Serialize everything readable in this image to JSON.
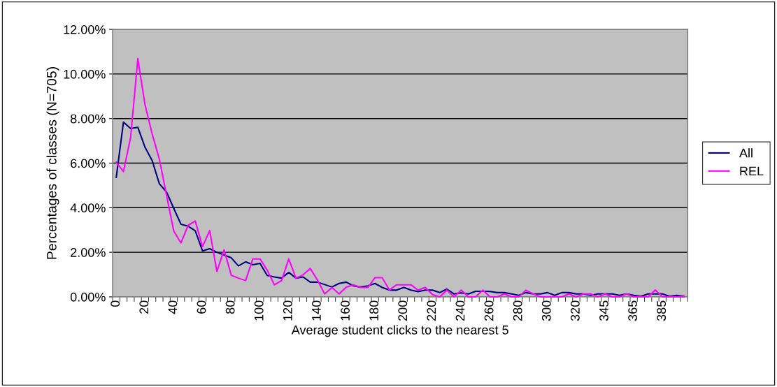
{
  "chart_data": {
    "type": "line",
    "xlabel": "Average student clicks to the nearest 5",
    "ylabel": "Percentages of classes (N=705)",
    "categories": [
      "0",
      null,
      null,
      null,
      "20",
      null,
      null,
      null,
      "40",
      null,
      null,
      null,
      "60",
      null,
      null,
      null,
      "80",
      null,
      null,
      null,
      "100",
      null,
      null,
      null,
      "120",
      null,
      null,
      null,
      "140",
      null,
      null,
      null,
      "160",
      null,
      null,
      null,
      "180",
      null,
      null,
      null,
      "200",
      null,
      null,
      null,
      "220",
      null,
      null,
      null,
      "240",
      null,
      null,
      null,
      "260",
      null,
      null,
      null,
      "280",
      null,
      null,
      null,
      "300",
      null,
      null,
      null,
      "320",
      null,
      null,
      null,
      "345",
      null,
      null,
      null,
      "365",
      null,
      null,
      null,
      "385",
      null,
      null,
      null
    ],
    "series": [
      {
        "name": "All",
        "color": "#000080",
        "values": [
          5.36,
          7.84,
          7.55,
          7.61,
          6.71,
          6.11,
          5.07,
          4.7,
          3.97,
          3.26,
          3.17,
          2.96,
          2.06,
          2.16,
          2.0,
          1.88,
          1.75,
          1.39,
          1.57,
          1.44,
          1.5,
          0.96,
          0.89,
          0.84,
          1.1,
          0.84,
          0.89,
          0.66,
          0.66,
          0.55,
          0.44,
          0.6,
          0.66,
          0.49,
          0.44,
          0.49,
          0.6,
          0.42,
          0.3,
          0.3,
          0.42,
          0.3,
          0.23,
          0.3,
          0.3,
          0.19,
          0.35,
          0.13,
          0.18,
          0.13,
          0.25,
          0.25,
          0.24,
          0.19,
          0.19,
          0.13,
          0.07,
          0.19,
          0.13,
          0.13,
          0.19,
          0.07,
          0.19,
          0.19,
          0.13,
          0.13,
          0.07,
          0.13,
          0.13,
          0.13,
          0.07,
          0.13,
          0.07,
          0.02,
          0.13,
          0.13,
          0.13,
          0.02,
          0.07,
          0.02
        ]
      },
      {
        "name": "REL",
        "color": "#ff00ff",
        "values": [
          6.04,
          5.62,
          7.16,
          10.69,
          8.62,
          7.3,
          6.17,
          4.55,
          2.95,
          2.42,
          3.21,
          3.4,
          2.25,
          2.97,
          1.14,
          2.11,
          0.97,
          0.84,
          0.73,
          1.7,
          1.7,
          1.2,
          0.54,
          0.73,
          1.7,
          0.84,
          0.99,
          1.27,
          0.75,
          0.13,
          0.42,
          0.13,
          0.44,
          0.54,
          0.42,
          0.42,
          0.86,
          0.86,
          0.31,
          0.54,
          0.54,
          0.54,
          0.3,
          0.42,
          0.1,
          0,
          0.3,
          0,
          0.3,
          0,
          0,
          0.3,
          0,
          0,
          0.13,
          0,
          0,
          0.3,
          0.13,
          0,
          0,
          0,
          0,
          0.13,
          0,
          0.13,
          0.13,
          0,
          0.13,
          0,
          0,
          0.13,
          0,
          0,
          0,
          0.31,
          0,
          0,
          0,
          0
        ]
      }
    ],
    "ylim": [
      0,
      12
    ],
    "yticks": [
      {
        "value": 0,
        "label": "0.00%"
      },
      {
        "value": 2,
        "label": "2.00%"
      },
      {
        "value": 4,
        "label": "4.00%"
      },
      {
        "value": 6,
        "label": "6.00%"
      },
      {
        "value": 8,
        "label": "8.00%"
      },
      {
        "value": 10,
        "label": "10.00%"
      },
      {
        "value": 12,
        "label": "12.00%"
      }
    ],
    "grid": "y",
    "legend": "right",
    "marker": "none",
    "line_style": "solid"
  }
}
